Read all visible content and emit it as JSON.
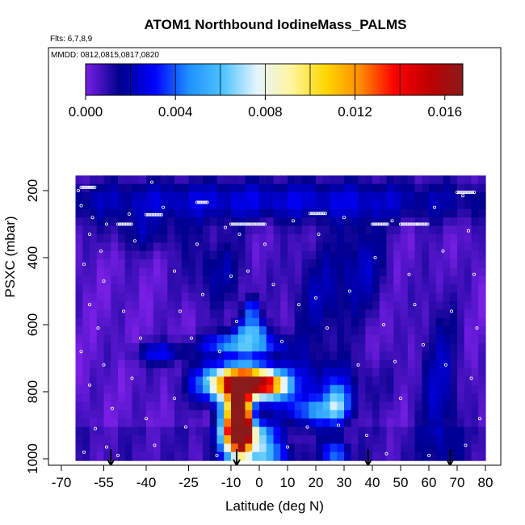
{
  "chart_data": {
    "type": "heatmap",
    "title": "ATOM1 Northbound IodineMass_PALMS",
    "annotations": [
      "Flts: 6,7,8,9",
      "MMDD: 0812,0815,0817,0820"
    ],
    "xlabel": "Latitude (deg N)",
    "ylabel": "PSXC (mbar)",
    "x_ticks": [
      "-70",
      "-55",
      "-40",
      "-25",
      "-10",
      "0",
      "10",
      "20",
      "30",
      "40",
      "50",
      "60",
      "70",
      "80"
    ],
    "y_ticks": [
      "200",
      "400",
      "600",
      "800",
      "1000"
    ],
    "xlim": [
      -65,
      80
    ],
    "ylim": [
      1000,
      155
    ],
    "y_reversed": true,
    "colorbar": {
      "range": [
        0,
        0.0168
      ],
      "ticks": [
        "0.000",
        "0.004",
        "0.008",
        "0.012",
        "0.016"
      ],
      "colors": [
        "#7a1fe6",
        "#00008b",
        "#0000ff",
        "#1e90ff",
        "#4dc3ff",
        "#e6f4ff",
        "#fff59e",
        "#ffd700",
        "#ff8c00",
        "#ff0000",
        "#c00000",
        "#8b1a1a"
      ]
    },
    "blobs": [
      {
        "lat": -6,
        "p": 890,
        "value": 0.0166,
        "dlat": 2,
        "dp": 55
      },
      {
        "lat": -9,
        "p": 890,
        "value": 0.0125,
        "dlat": 3,
        "dp": 60
      },
      {
        "lat": -3,
        "p": 775,
        "value": 0.0115,
        "dlat": 6,
        "dp": 30
      },
      {
        "lat": -11,
        "p": 775,
        "value": 0.0085,
        "dlat": 7,
        "dp": 35
      },
      {
        "lat": 5,
        "p": 780,
        "value": 0.006,
        "dlat": 4,
        "dp": 25
      },
      {
        "lat": -4,
        "p": 930,
        "value": 0.008,
        "dlat": 6,
        "dp": 30
      },
      {
        "lat": 0,
        "p": 985,
        "value": 0.005,
        "dlat": 7,
        "dp": 20
      },
      {
        "lat": -6,
        "p": 660,
        "value": 0.0055,
        "dlat": 9,
        "dp": 22
      },
      {
        "lat": -3,
        "p": 615,
        "value": 0.0045,
        "dlat": 4,
        "dp": 20
      },
      {
        "lat": -3,
        "p": 560,
        "value": 0.004,
        "dlat": 2,
        "dp": 25
      },
      {
        "lat": 20,
        "p": 860,
        "value": 0.004,
        "dlat": 6,
        "dp": 28
      },
      {
        "lat": 28,
        "p": 835,
        "value": 0.0045,
        "dlat": 3,
        "dp": 40
      },
      {
        "lat": 27,
        "p": 985,
        "value": 0.004,
        "dlat": 3,
        "dp": 25
      },
      {
        "lat": -35,
        "p": 685,
        "value": 0.0025,
        "dlat": 6,
        "dp": 22
      },
      {
        "lat": 10,
        "p": 780,
        "value": 0.0022,
        "dlat": 20,
        "dp": 60
      },
      {
        "lat": 22,
        "p": 520,
        "value": 0.0015,
        "dlat": 8,
        "dp": 120
      },
      {
        "lat": 37,
        "p": 420,
        "value": 0.0016,
        "dlat": 6,
        "dp": 100
      },
      {
        "lat": 64,
        "p": 800,
        "value": 0.0018,
        "dlat": 5,
        "dp": 200
      },
      {
        "lat": 0,
        "p": 230,
        "value": 0.0022,
        "dlat": 70,
        "dp": 45
      },
      {
        "lat": -15,
        "p": 440,
        "value": 0.0014,
        "dlat": 8,
        "dp": 80
      },
      {
        "lat": -40,
        "p": 330,
        "value": 0.0012,
        "dlat": 10,
        "dp": 40
      }
    ],
    "flight_arrows_lat": [
      -52.5,
      -8,
      38.5,
      67.5
    ],
    "sample_points": [
      {
        "lat": -64,
        "p": 200
      },
      {
        "lat": -63,
        "p": 245
      },
      {
        "lat": -59,
        "p": 280
      },
      {
        "lat": -54,
        "p": 300
      },
      {
        "lat": -60,
        "p": 330
      },
      {
        "lat": -56,
        "p": 380
      },
      {
        "lat": -62,
        "p": 420
      },
      {
        "lat": -55,
        "p": 470
      },
      {
        "lat": -60,
        "p": 540
      },
      {
        "lat": -57,
        "p": 610
      },
      {
        "lat": -63,
        "p": 680
      },
      {
        "lat": -55,
        "p": 720
      },
      {
        "lat": -60,
        "p": 780
      },
      {
        "lat": -52,
        "p": 850
      },
      {
        "lat": -58,
        "p": 910
      },
      {
        "lat": -54,
        "p": 965
      },
      {
        "lat": -46,
        "p": 270
      },
      {
        "lat": -44,
        "p": 350
      },
      {
        "lat": -48,
        "p": 560
      },
      {
        "lat": -42,
        "p": 640
      },
      {
        "lat": -45,
        "p": 760
      },
      {
        "lat": -40,
        "p": 880
      },
      {
        "lat": -37,
        "p": 960
      },
      {
        "lat": -34,
        "p": 250
      },
      {
        "lat": -30,
        "p": 440
      },
      {
        "lat": -28,
        "p": 560
      },
      {
        "lat": -30,
        "p": 820
      },
      {
        "lat": -26,
        "p": 905
      },
      {
        "lat": -22,
        "p": 360
      },
      {
        "lat": -20,
        "p": 510
      },
      {
        "lat": -18,
        "p": 760
      },
      {
        "lat": -15,
        "p": 990
      },
      {
        "lat": -12,
        "p": 310
      },
      {
        "lat": -10,
        "p": 455
      },
      {
        "lat": -8,
        "p": 590
      },
      {
        "lat": -14,
        "p": 680
      },
      {
        "lat": -7,
        "p": 330
      },
      {
        "lat": -4,
        "p": 440
      },
      {
        "lat": 2,
        "p": 360
      },
      {
        "lat": 5,
        "p": 480
      },
      {
        "lat": 8,
        "p": 650
      },
      {
        "lat": 12,
        "p": 290
      },
      {
        "lat": 14,
        "p": 540
      },
      {
        "lat": 17,
        "p": 905
      },
      {
        "lat": 21,
        "p": 330
      },
      {
        "lat": 24,
        "p": 610
      },
      {
        "lat": 30,
        "p": 280
      },
      {
        "lat": 32,
        "p": 500
      },
      {
        "lat": 35,
        "p": 720
      },
      {
        "lat": 38,
        "p": 930
      },
      {
        "lat": 41,
        "p": 400
      },
      {
        "lat": 44,
        "p": 600
      },
      {
        "lat": 47,
        "p": 290
      },
      {
        "lat": 50,
        "p": 820
      },
      {
        "lat": 53,
        "p": 450
      },
      {
        "lat": 56,
        "p": 300
      },
      {
        "lat": 58,
        "p": 660
      },
      {
        "lat": 62,
        "p": 250
      },
      {
        "lat": 65,
        "p": 380
      },
      {
        "lat": 68,
        "p": 560
      },
      {
        "lat": 66,
        "p": 720
      },
      {
        "lat": 72,
        "p": 215
      },
      {
        "lat": 74,
        "p": 320
      },
      {
        "lat": 76,
        "p": 450
      },
      {
        "lat": 77,
        "p": 610
      },
      {
        "lat": 75,
        "p": 760
      },
      {
        "lat": 78,
        "p": 880
      },
      {
        "lat": 73,
        "p": 960
      },
      {
        "lat": -62,
        "p": 980
      },
      {
        "lat": -50,
        "p": 990
      },
      {
        "lat": 10,
        "p": 965
      },
      {
        "lat": 45,
        "p": 985
      },
      {
        "lat": 60,
        "p": 990
      },
      {
        "lat": -38,
        "p": 175
      },
      {
        "lat": 20,
        "p": 520
      },
      {
        "lat": -3,
        "p": 980
      },
      {
        "lat": 55,
        "p": 540
      },
      {
        "lat": -24,
        "p": 640
      },
      {
        "lat": 28,
        "p": 900
      },
      {
        "lat": 48,
        "p": 710
      }
    ],
    "sample_runs": [
      {
        "lat1": -63,
        "lat2": -58,
        "p": 190
      },
      {
        "lat1": -40,
        "lat2": -34,
        "p": 272
      },
      {
        "lat1": -50,
        "lat2": -45,
        "p": 300
      },
      {
        "lat1": -10,
        "lat2": 2,
        "p": 300
      },
      {
        "lat1": 18,
        "lat2": 24,
        "p": 268
      },
      {
        "lat1": 40,
        "lat2": 46,
        "p": 300
      },
      {
        "lat1": 50,
        "lat2": 60,
        "p": 300
      },
      {
        "lat1": -22,
        "lat2": -18,
        "p": 235
      },
      {
        "lat1": 70,
        "lat2": 76,
        "p": 205
      }
    ]
  }
}
